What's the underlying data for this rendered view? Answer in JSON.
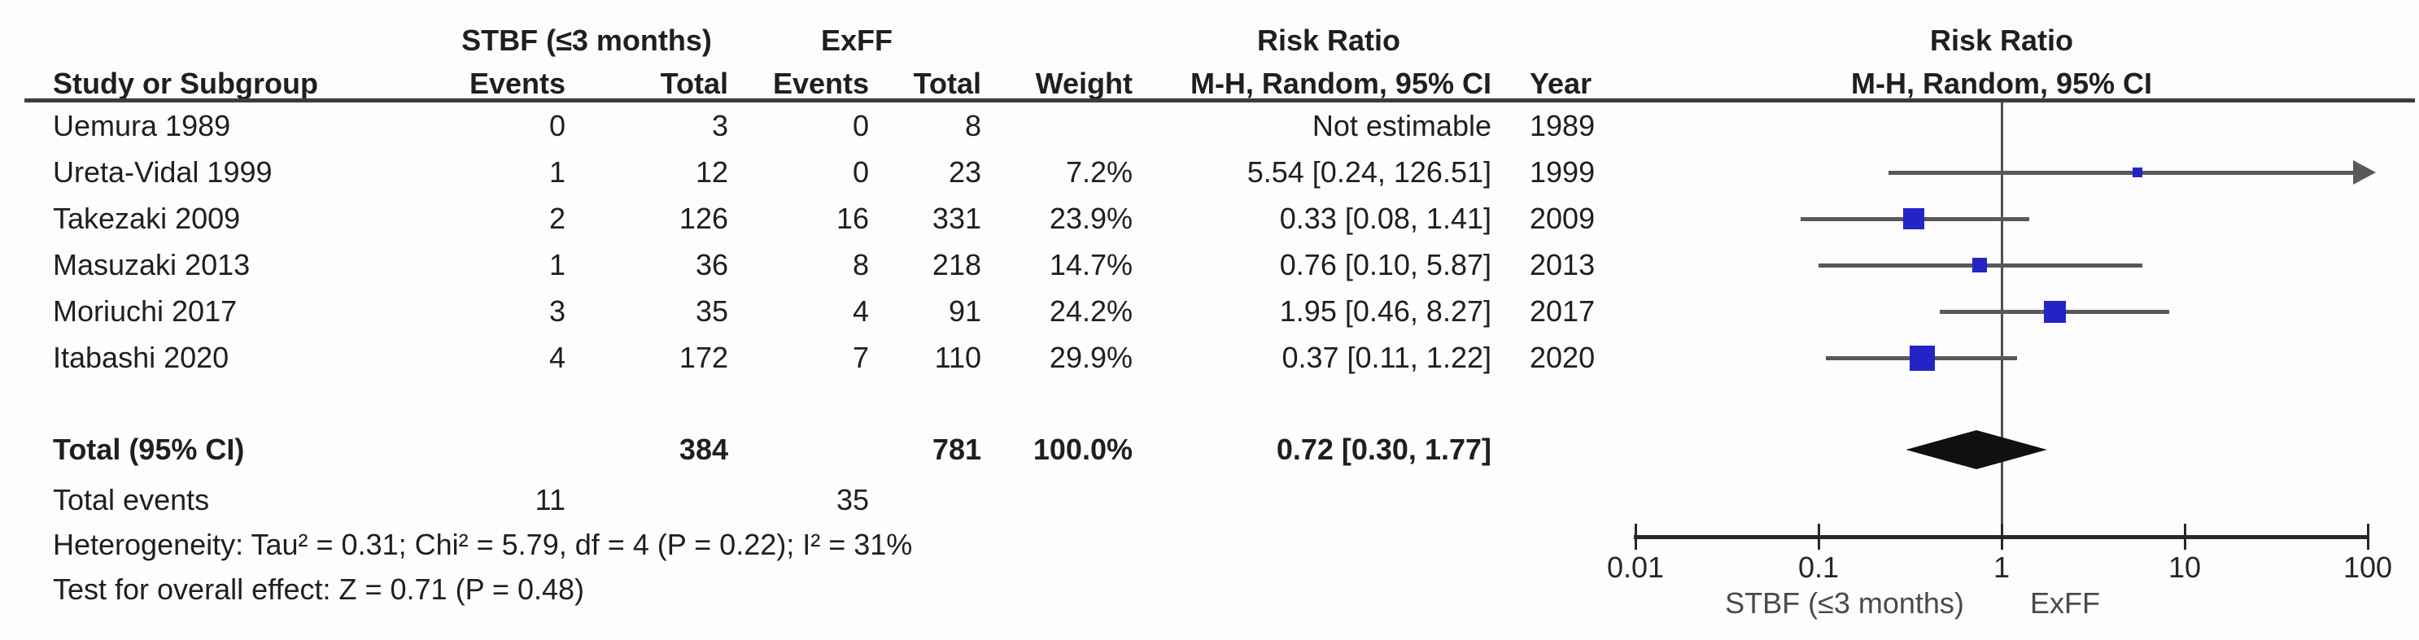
{
  "colors": {
    "text": "#1f1f1f",
    "ci_line": "#595959",
    "axis": "#282828",
    "vline": "#4f4f4f",
    "square": "#2323c8",
    "diamond": "#101010",
    "footer_label": "#4a4a4a"
  },
  "table": {
    "group1_header": "STBF (≤3 months)",
    "group2_header": "ExFF",
    "risk_ratio_header_left": "Risk Ratio",
    "risk_ratio_header_right": "Risk Ratio",
    "col_study": "Study or Subgroup",
    "col_events_1": "Events",
    "col_total_1": "Total",
    "col_events_2": "Events",
    "col_total_2": "Total",
    "col_weight": "Weight",
    "col_mh_left": "M-H, Random, 95% CI",
    "col_year": "Year",
    "col_mh_right": "M-H, Random, 95% CI",
    "total_row": {
      "label": "Total (95% CI)",
      "total_stbf": "384",
      "total_exff": "781",
      "weight": "100.0%",
      "rr_text": "0.72 [0.30, 1.77]"
    },
    "total_events": {
      "label": "Total events",
      "events_stbf": "11",
      "events_exff": "35"
    },
    "heterogeneity": "Heterogeneity: Tau² = 0.31; Chi² = 5.79, df = 4 (P = 0.22); I² = 31%",
    "overall_effect": "Test for overall effect: Z = 0.71 (P = 0.48)"
  },
  "chart_data": {
    "type": "forest",
    "effect_measure": "Risk Ratio (M-H, Random, 95% CI)",
    "studies": [
      {
        "name": "Uemura 1989",
        "e1": "0",
        "t1": "3",
        "e2": "0",
        "t2": "8",
        "weight_text": "",
        "rr_text": "Not estimable",
        "year": "1989",
        "rr": null,
        "lo": null,
        "hi": null,
        "weight_pct": null
      },
      {
        "name": "Ureta-Vidal 1999",
        "e1": "1",
        "t1": "12",
        "e2": "0",
        "t2": "23",
        "weight_text": "7.2%",
        "rr_text": "5.54 [0.24, 126.51]",
        "year": "1999",
        "rr": 5.54,
        "lo": 0.24,
        "hi": 126.51,
        "weight_pct": 7.2
      },
      {
        "name": "Takezaki 2009",
        "e1": "2",
        "t1": "126",
        "e2": "16",
        "t2": "331",
        "weight_text": "23.9%",
        "rr_text": "0.33 [0.08, 1.41]",
        "year": "2009",
        "rr": 0.33,
        "lo": 0.08,
        "hi": 1.41,
        "weight_pct": 23.9
      },
      {
        "name": "Masuzaki 2013",
        "e1": "1",
        "t1": "36",
        "e2": "8",
        "t2": "218",
        "weight_text": "14.7%",
        "rr_text": "0.76 [0.10, 5.87]",
        "year": "2013",
        "rr": 0.76,
        "lo": 0.1,
        "hi": 5.87,
        "weight_pct": 14.7
      },
      {
        "name": "Moriuchi 2017",
        "e1": "3",
        "t1": "35",
        "e2": "4",
        "t2": "91",
        "weight_text": "24.2%",
        "rr_text": "1.95 [0.46, 8.27]",
        "year": "2017",
        "rr": 1.95,
        "lo": 0.46,
        "hi": 8.27,
        "weight_pct": 24.2
      },
      {
        "name": "Itabashi 2020",
        "e1": "4",
        "t1": "172",
        "e2": "7",
        "t2": "110",
        "weight_text": "29.9%",
        "rr_text": "0.37 [0.11, 1.22]",
        "year": "2020",
        "rr": 0.37,
        "lo": 0.11,
        "hi": 1.22,
        "weight_pct": 29.9
      }
    ],
    "total": {
      "rr": 0.72,
      "lo": 0.3,
      "hi": 1.77
    },
    "axis": {
      "scale": "log",
      "min": 0.01,
      "max": 100,
      "ticks": [
        {
          "v": 0.01,
          "label": "0.01"
        },
        {
          "v": 0.1,
          "label": "0.1"
        },
        {
          "v": 1,
          "label": "1"
        },
        {
          "v": 10,
          "label": "10"
        },
        {
          "v": 100,
          "label": "100"
        }
      ]
    },
    "footer_left_label": "STBF (≤3 months)",
    "footer_right_label": "ExFF"
  }
}
